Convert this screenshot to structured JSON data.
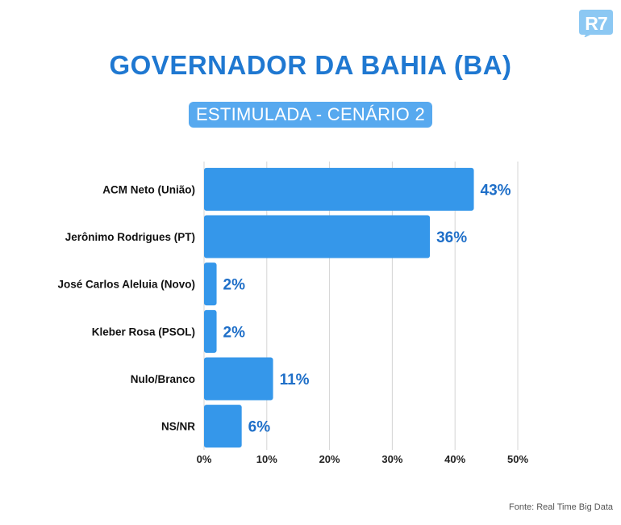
{
  "brand": {
    "logo_text": "R7",
    "logo_color": "#8cc8f3"
  },
  "header": {
    "title": "GOVERNADOR DA BAHIA (BA)",
    "subtitle": "ESTIMULADA - CENÁRIO 2"
  },
  "footer": {
    "source": "Fonte: Real Time Big Data"
  },
  "colors": {
    "bar": "#3597ea",
    "value_label": "#1f6fc8",
    "title": "#1f78d1",
    "subtitle_bg": "#57a9ef",
    "grid": "#d4d4d4"
  },
  "chart_data": {
    "type": "bar",
    "orientation": "horizontal",
    "categories": [
      "ACM Neto (União)",
      "Jerônimo Rodrigues (PT)",
      "José Carlos Aleluia (Novo)",
      "Kleber Rosa (PSOL)",
      "Nulo/Branco",
      "NS/NR"
    ],
    "values": [
      43,
      36,
      2,
      2,
      11,
      6
    ],
    "value_labels": [
      "43%",
      "36%",
      "2%",
      "2%",
      "11%",
      "6%"
    ],
    "title": "GOVERNADOR DA BAHIA (BA)",
    "subtitle": "ESTIMULADA - CENÁRIO 2",
    "xlabel": "",
    "ylabel": "",
    "xlim": [
      0,
      50
    ],
    "x_ticks": [
      0,
      10,
      20,
      30,
      40,
      50
    ],
    "x_tick_labels": [
      "0%",
      "10%",
      "20%",
      "30%",
      "40%",
      "50%"
    ],
    "grid": true,
    "legend": "none"
  }
}
